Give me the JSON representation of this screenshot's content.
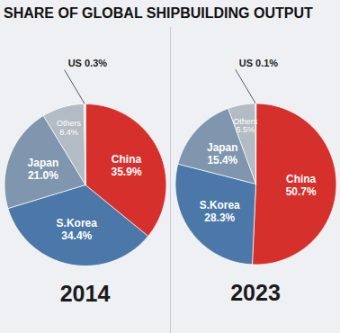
{
  "title": "SHARE OF GLOBAL SHIPBUILDING OUTPUT",
  "chart_data": [
    {
      "type": "pie",
      "title": "2014",
      "categories": [
        "China",
        "S.Korea",
        "Japan",
        "Others",
        "US"
      ],
      "values": [
        35.9,
        34.4,
        21.0,
        8.4,
        0.3
      ],
      "value_labels": [
        "35.9%",
        "34.4%",
        "21.0%",
        "8.4%",
        "0.3%"
      ],
      "colors": [
        "#d6302c",
        "#4b78a8",
        "#7f96ae",
        "#b3bbc5",
        "#e4e7eb"
      ],
      "data_labels": true
    },
    {
      "type": "pie",
      "title": "2023",
      "categories": [
        "China",
        "S.Korea",
        "Japan",
        "Others",
        "US"
      ],
      "values": [
        50.7,
        28.3,
        15.4,
        5.5,
        0.1
      ],
      "value_labels": [
        "50.7%",
        "28.3%",
        "15.4%",
        "5.5%",
        "0.1%"
      ],
      "colors": [
        "#d6302c",
        "#4b78a8",
        "#7f96ae",
        "#b3bbc5",
        "#e4e7eb"
      ],
      "data_labels": true
    }
  ]
}
